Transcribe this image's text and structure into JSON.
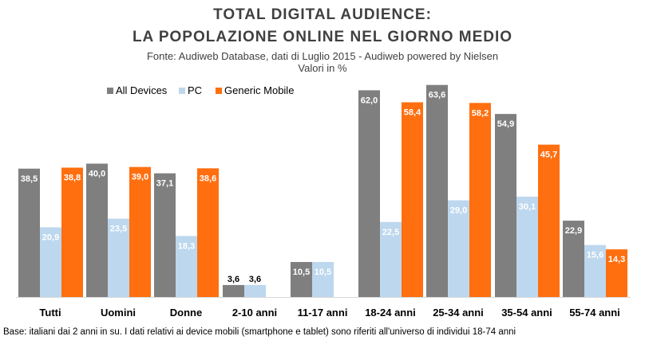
{
  "chart_data": {
    "type": "bar",
    "title": "TOTAL DIGITAL AUDIENCE:",
    "title_line2": "LA POPOLAZIONE ONLINE NEL GIORNO MEDIO",
    "subtitle": "Fonte: Audiweb Database, dati di Luglio 2015 - Audiweb powered by Nielsen",
    "subtitle_line2": "Valori in %",
    "categories": [
      "Tutti",
      "Uomini",
      "Donne",
      "2-10 anni",
      "11-17 anni",
      "18-24 anni",
      "25-34 anni",
      "35-54 anni",
      "55-74 anni"
    ],
    "series": [
      {
        "name": "All Devices",
        "color": "#7f7f7f",
        "values": [
          38.5,
          40.0,
          37.1,
          3.6,
          10.5,
          62.0,
          63.6,
          54.9,
          22.9
        ],
        "labels": [
          "38,5",
          "40,0",
          "37,1",
          "3,6",
          "10,5",
          "62,0",
          "63,6",
          "54,9",
          "22,9"
        ]
      },
      {
        "name": "PC",
        "color": "#bdd7ee",
        "values": [
          20.9,
          23.5,
          18.3,
          3.6,
          10.5,
          22.5,
          29.0,
          30.1,
          15.6
        ],
        "labels": [
          "20,9",
          "23,5",
          "18,3",
          "3,6",
          "10,5",
          "22,5",
          "29,0",
          "30,1",
          "15,6"
        ]
      },
      {
        "name": "Generic Mobile",
        "color": "#ff6f0f",
        "values": [
          38.8,
          39.0,
          38.6,
          null,
          null,
          58.4,
          58.2,
          45.7,
          14.3
        ],
        "labels": [
          "38,8",
          "39,0",
          "38,6",
          null,
          null,
          "58,4",
          "58,2",
          "45,7",
          "14,3"
        ]
      }
    ],
    "ylim": [
      0,
      64
    ],
    "legend_position": "top-left",
    "footnote": "Base: italiani dai 2 anni in su. I dati relativi ai device mobili (smartphone e tablet) sono riferiti all'universo di individui 18-74 anni"
  }
}
